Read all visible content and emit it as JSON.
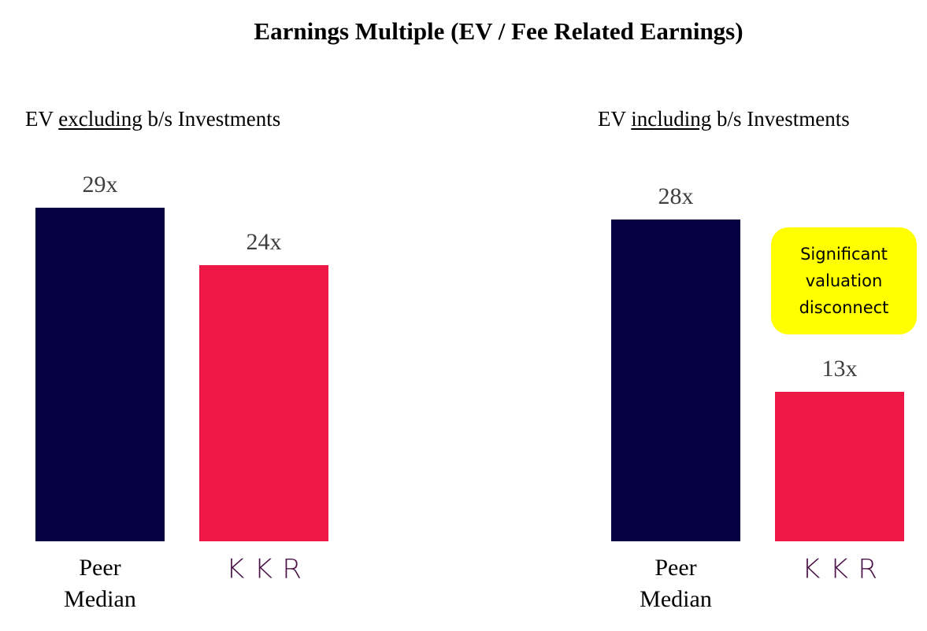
{
  "chart_data": [
    {
      "type": "bar",
      "title": "Earnings Multiple (EV / Fee Related Earnings)",
      "subtitle": {
        "pre": "EV ",
        "underlined": "excluding",
        "post": " b/s Investments"
      },
      "categories": [
        "Peer Median",
        "KKR"
      ],
      "values": [
        29,
        24
      ],
      "data_labels": [
        "29x",
        "24x"
      ],
      "ylim": [
        0,
        29
      ],
      "grid": false
    },
    {
      "type": "bar",
      "subtitle": {
        "pre": "EV ",
        "underlined": "including",
        "post": " b/s Investments"
      },
      "categories": [
        "Peer Median",
        "KKR"
      ],
      "values": [
        28,
        13
      ],
      "data_labels": [
        "28x",
        "13x"
      ],
      "ylim": [
        0,
        29
      ],
      "grid": false,
      "annotation": "Significant valuation disconnect"
    }
  ],
  "labels": {
    "peer_line1": "Peer",
    "peer_line2": "Median",
    "kkr_logo": "KKR"
  },
  "colors": {
    "peer": "#050040",
    "kkr": "#EE1846",
    "logo": "#4A1448",
    "callout": "#FFFF00",
    "value_label": "#3F3F3F"
  }
}
